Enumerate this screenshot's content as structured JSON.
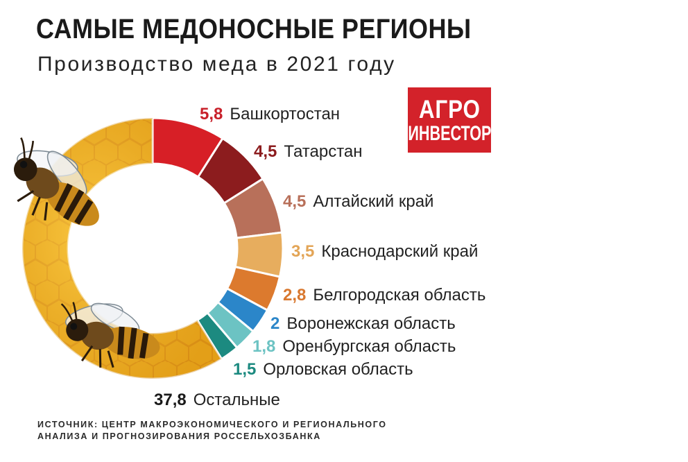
{
  "header": {
    "title": "САМЫЕ МЕДОНОСНЫЕ РЕГИОНЫ",
    "subtitle": "Производство меда в 2021 году"
  },
  "logo": {
    "line1": "АГРО",
    "line2": "ИНВЕСТОР"
  },
  "source": {
    "line1": "ИСТОЧНИК: ЦЕНТР МАКРОЭКОНОМИЧЕСКОГО И РЕГИОНАЛЬНОГО",
    "line2": "АНАЛИЗА И ПРОГНОЗИРОВАНИЯ РОССЕЛЬХОЗБАНКА"
  },
  "chart_data": {
    "type": "pie",
    "variant": "donut",
    "title": "САМЫЕ МЕДОНОСНЫЕ РЕГИОНЫ",
    "subtitle": "Производство меда в 2021 году",
    "slices": [
      {
        "label": "Башкортостан",
        "value_text": "5,8",
        "value": 5.8,
        "color": "#d71f26",
        "label_color": "#c8202a"
      },
      {
        "label": "Татарстан",
        "value_text": "4,5",
        "value": 4.5,
        "color": "#8c1c1e",
        "label_color": "#8c1c1e"
      },
      {
        "label": "Алтайский край",
        "value_text": "4,5",
        "value": 4.5,
        "color": "#b8705a",
        "label_color": "#b8705a"
      },
      {
        "label": "Краснодарский край",
        "value_text": "3,5",
        "value": 3.5,
        "color": "#e7ad5e",
        "label_color": "#e3a557"
      },
      {
        "label": "Белгородская область",
        "value_text": "2,8",
        "value": 2.8,
        "color": "#dc7a2e",
        "label_color": "#d9782f"
      },
      {
        "label": "Воронежская область",
        "value_text": "2",
        "value": 2,
        "color": "#2b86c9",
        "label_color": "#2b86c9"
      },
      {
        "label": "Оренбургская область",
        "value_text": "1,8",
        "value": 1.8,
        "color": "#6cc3c3",
        "label_color": "#6cc3c3"
      },
      {
        "label": "Орловская область",
        "value_text": "1,5",
        "value": 1.5,
        "color": "#1c8a80",
        "label_color": "#1c8a80"
      },
      {
        "label": "Остальные",
        "value_text": "37,8",
        "value": 37.8,
        "color": "#f2b01c",
        "label_color": "#1a1a1a",
        "textured": true
      }
    ]
  }
}
